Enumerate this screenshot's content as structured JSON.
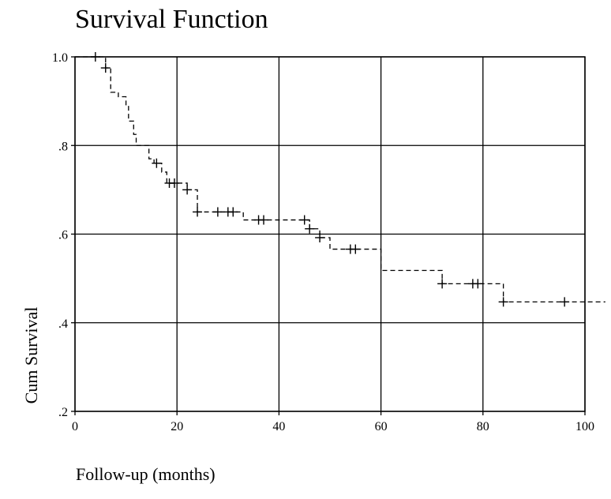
{
  "chart_data": {
    "type": "line",
    "title": "Survival Function",
    "xlabel": "Follow-up (months)",
    "ylabel": "Cum Survival",
    "xlim": [
      0,
      100
    ],
    "ylim": [
      0.2,
      1.0
    ],
    "x_ticks": [
      0,
      20,
      40,
      60,
      80,
      100
    ],
    "x_tick_labels": [
      "0",
      "20",
      "40",
      "60",
      "80",
      "100"
    ],
    "y_ticks": [
      0.2,
      0.4,
      0.6,
      0.8,
      1.0
    ],
    "y_tick_labels": [
      ".2",
      ".4",
      ".6",
      ".8",
      "1.0"
    ],
    "grid": true,
    "series": [
      {
        "step_points": [
          {
            "x": 0,
            "y": 1.0
          },
          {
            "x": 6,
            "y": 0.975
          },
          {
            "x": 7,
            "y": 0.92
          },
          {
            "x": 8.5,
            "y": 0.91
          },
          {
            "x": 10,
            "y": 0.89
          },
          {
            "x": 10.5,
            "y": 0.855
          },
          {
            "x": 11.5,
            "y": 0.825
          },
          {
            "x": 12,
            "y": 0.8
          },
          {
            "x": 14.5,
            "y": 0.77
          },
          {
            "x": 15.5,
            "y": 0.76
          },
          {
            "x": 17,
            "y": 0.74
          },
          {
            "x": 18,
            "y": 0.715
          },
          {
            "x": 22,
            "y": 0.7
          },
          {
            "x": 24,
            "y": 0.65
          },
          {
            "x": 33,
            "y": 0.632
          },
          {
            "x": 46,
            "y": 0.612
          },
          {
            "x": 48,
            "y": 0.592
          },
          {
            "x": 50,
            "y": 0.566
          },
          {
            "x": 60,
            "y": 0.518
          },
          {
            "x": 72,
            "y": 0.488
          },
          {
            "x": 84,
            "y": 0.447
          },
          {
            "x": 104,
            "y": 0.447
          }
        ],
        "censored": [
          {
            "x": 4,
            "y": 1.0
          },
          {
            "x": 6,
            "y": 0.975
          },
          {
            "x": 16,
            "y": 0.76
          },
          {
            "x": 18.5,
            "y": 0.715
          },
          {
            "x": 19.5,
            "y": 0.715
          },
          {
            "x": 22,
            "y": 0.7
          },
          {
            "x": 24,
            "y": 0.65
          },
          {
            "x": 28,
            "y": 0.65
          },
          {
            "x": 30,
            "y": 0.65
          },
          {
            "x": 31,
            "y": 0.65
          },
          {
            "x": 36,
            "y": 0.632
          },
          {
            "x": 37,
            "y": 0.632
          },
          {
            "x": 45,
            "y": 0.632
          },
          {
            "x": 46,
            "y": 0.612
          },
          {
            "x": 48,
            "y": 0.592
          },
          {
            "x": 54,
            "y": 0.566
          },
          {
            "x": 55,
            "y": 0.566
          },
          {
            "x": 72,
            "y": 0.488
          },
          {
            "x": 78,
            "y": 0.488
          },
          {
            "x": 79,
            "y": 0.488
          },
          {
            "x": 84,
            "y": 0.447
          },
          {
            "x": 96,
            "y": 0.447
          }
        ]
      }
    ]
  }
}
